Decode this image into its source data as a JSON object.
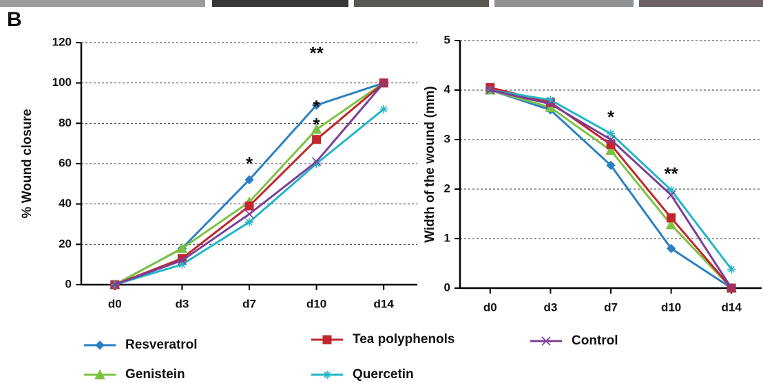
{
  "panel_label": "B",
  "chart_data": [
    {
      "type": "line",
      "ylabel": "% Wound closure",
      "categories": [
        "d0",
        "d3",
        "d7",
        "d10",
        "d14"
      ],
      "ylim": [
        0,
        120
      ],
      "yticks": [
        0,
        20,
        40,
        60,
        80,
        100,
        120
      ],
      "grid": true,
      "series": [
        {
          "name": "Resveratrol",
          "color": "#2a7fc4",
          "marker": "diamond",
          "values": [
            0,
            18,
            52,
            89,
            100
          ]
        },
        {
          "name": "Genistein",
          "color": "#7cc242",
          "marker": "triangle",
          "values": [
            0,
            18,
            41,
            77,
            100
          ]
        },
        {
          "name": "Tea polyphenols",
          "color": "#c1272d",
          "marker": "square",
          "values": [
            0,
            13,
            39,
            72,
            100
          ]
        },
        {
          "name": "Quercetin",
          "color": "#22b5c8",
          "marker": "star",
          "values": [
            0,
            10,
            31,
            60,
            87
          ]
        },
        {
          "name": "Control",
          "color": "#7b3f97",
          "marker": "x",
          "values": [
            0,
            12,
            35,
            61,
            100
          ]
        }
      ],
      "annotations": [
        {
          "text": "*",
          "color": "#2e3a8c",
          "category": "d7"
        },
        {
          "text": "**",
          "color": "#2e3a8c",
          "category": "d10"
        },
        {
          "text": "*",
          "color": "#7cc242",
          "category": "d10"
        },
        {
          "text": "*",
          "color": "#e0262c",
          "category": "d10"
        }
      ]
    },
    {
      "type": "line",
      "ylabel": "Width of the wound (mm)",
      "categories": [
        "d0",
        "d3",
        "d7",
        "d10",
        "d14"
      ],
      "ylim": [
        0,
        5
      ],
      "yticks": [
        0,
        1,
        2,
        3,
        4,
        5
      ],
      "grid": true,
      "series": [
        {
          "color": "#2a7fc4",
          "marker": "diamond",
          "values": [
            4.0,
            3.6,
            2.48,
            0.8,
            0
          ]
        },
        {
          "color": "#7cc242",
          "marker": "triangle",
          "values": [
            4.0,
            3.65,
            2.78,
            1.28,
            0
          ]
        },
        {
          "color": "#c1272d",
          "marker": "square",
          "values": [
            4.05,
            3.75,
            2.9,
            1.42,
            0
          ]
        },
        {
          "color": "#22b5c8",
          "marker": "star",
          "values": [
            4.0,
            3.8,
            3.12,
            1.98,
            0.38
          ]
        },
        {
          "color": "#7b3f97",
          "marker": "x",
          "values": [
            4.0,
            3.72,
            3.0,
            1.88,
            0
          ]
        }
      ],
      "annotations": [
        {
          "text": "*",
          "color": "#2ea3d4",
          "category": "d7"
        },
        {
          "text": "**",
          "color": "#2ea3d4",
          "category": "d10"
        }
      ]
    }
  ]
}
